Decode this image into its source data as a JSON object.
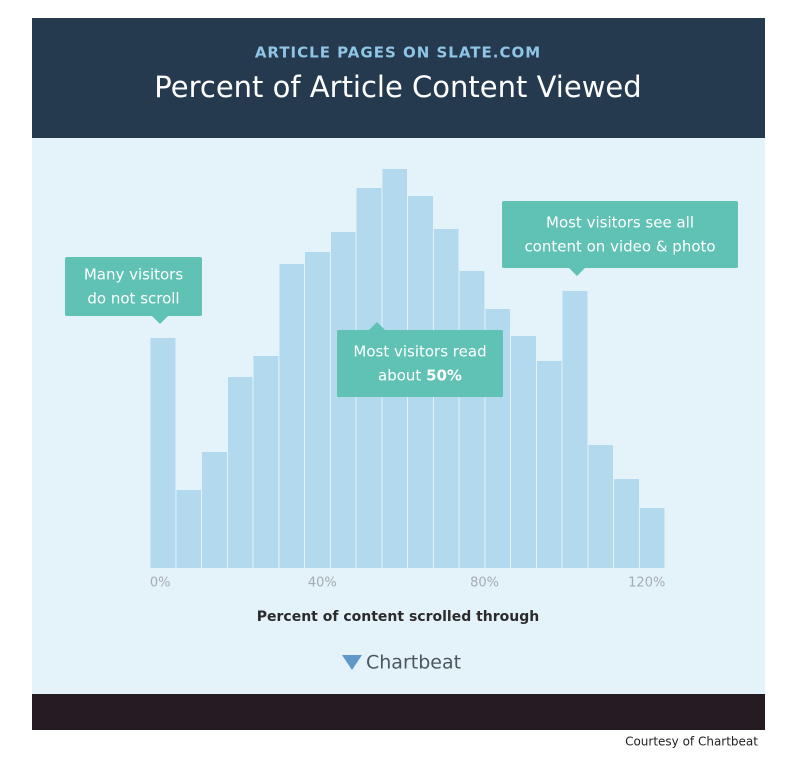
{
  "subtitle": "ARTICLE PAGES ON SLATE.COM",
  "logo": "Chartbeat",
  "credit": "Courtesy of Chartbeat",
  "chart_data": {
    "type": "histogram",
    "title": "Percent of Article Content Viewed",
    "x_label": "Percent of content scrolled through",
    "bins": [
      -2.5,
      3.9,
      10.2,
      16.6,
      22.9,
      29.3,
      35.6,
      42.0,
      48.3,
      54.7,
      61.0,
      67.4,
      73.7,
      80.1,
      86.4,
      92.8,
      99.1,
      105.5,
      111.8,
      118.2,
      124.5
    ],
    "counts": [
      230,
      78,
      116,
      191,
      212,
      304,
      316,
      336,
      380,
      399,
      372,
      339,
      297,
      259,
      232,
      207,
      277,
      123,
      89,
      60
    ],
    "color": "#b2d9ed",
    "xlim": [
      -2.5,
      124.5
    ],
    "xticks": [
      {
        "value": 0,
        "label": "0%"
      },
      {
        "value": 40,
        "label": "40%"
      },
      {
        "value": 80,
        "label": "80%"
      },
      {
        "value": 120,
        "label": "120%"
      }
    ],
    "annotations": [
      {
        "lines": [
          "Many visitors",
          "do not scroll"
        ]
      },
      {
        "lines": [
          "Most visitors read",
          "about "
        ],
        "bold": "50%"
      },
      {
        "lines": [
          "Most visitors see all",
          "content on video & photo"
        ]
      }
    ]
  }
}
